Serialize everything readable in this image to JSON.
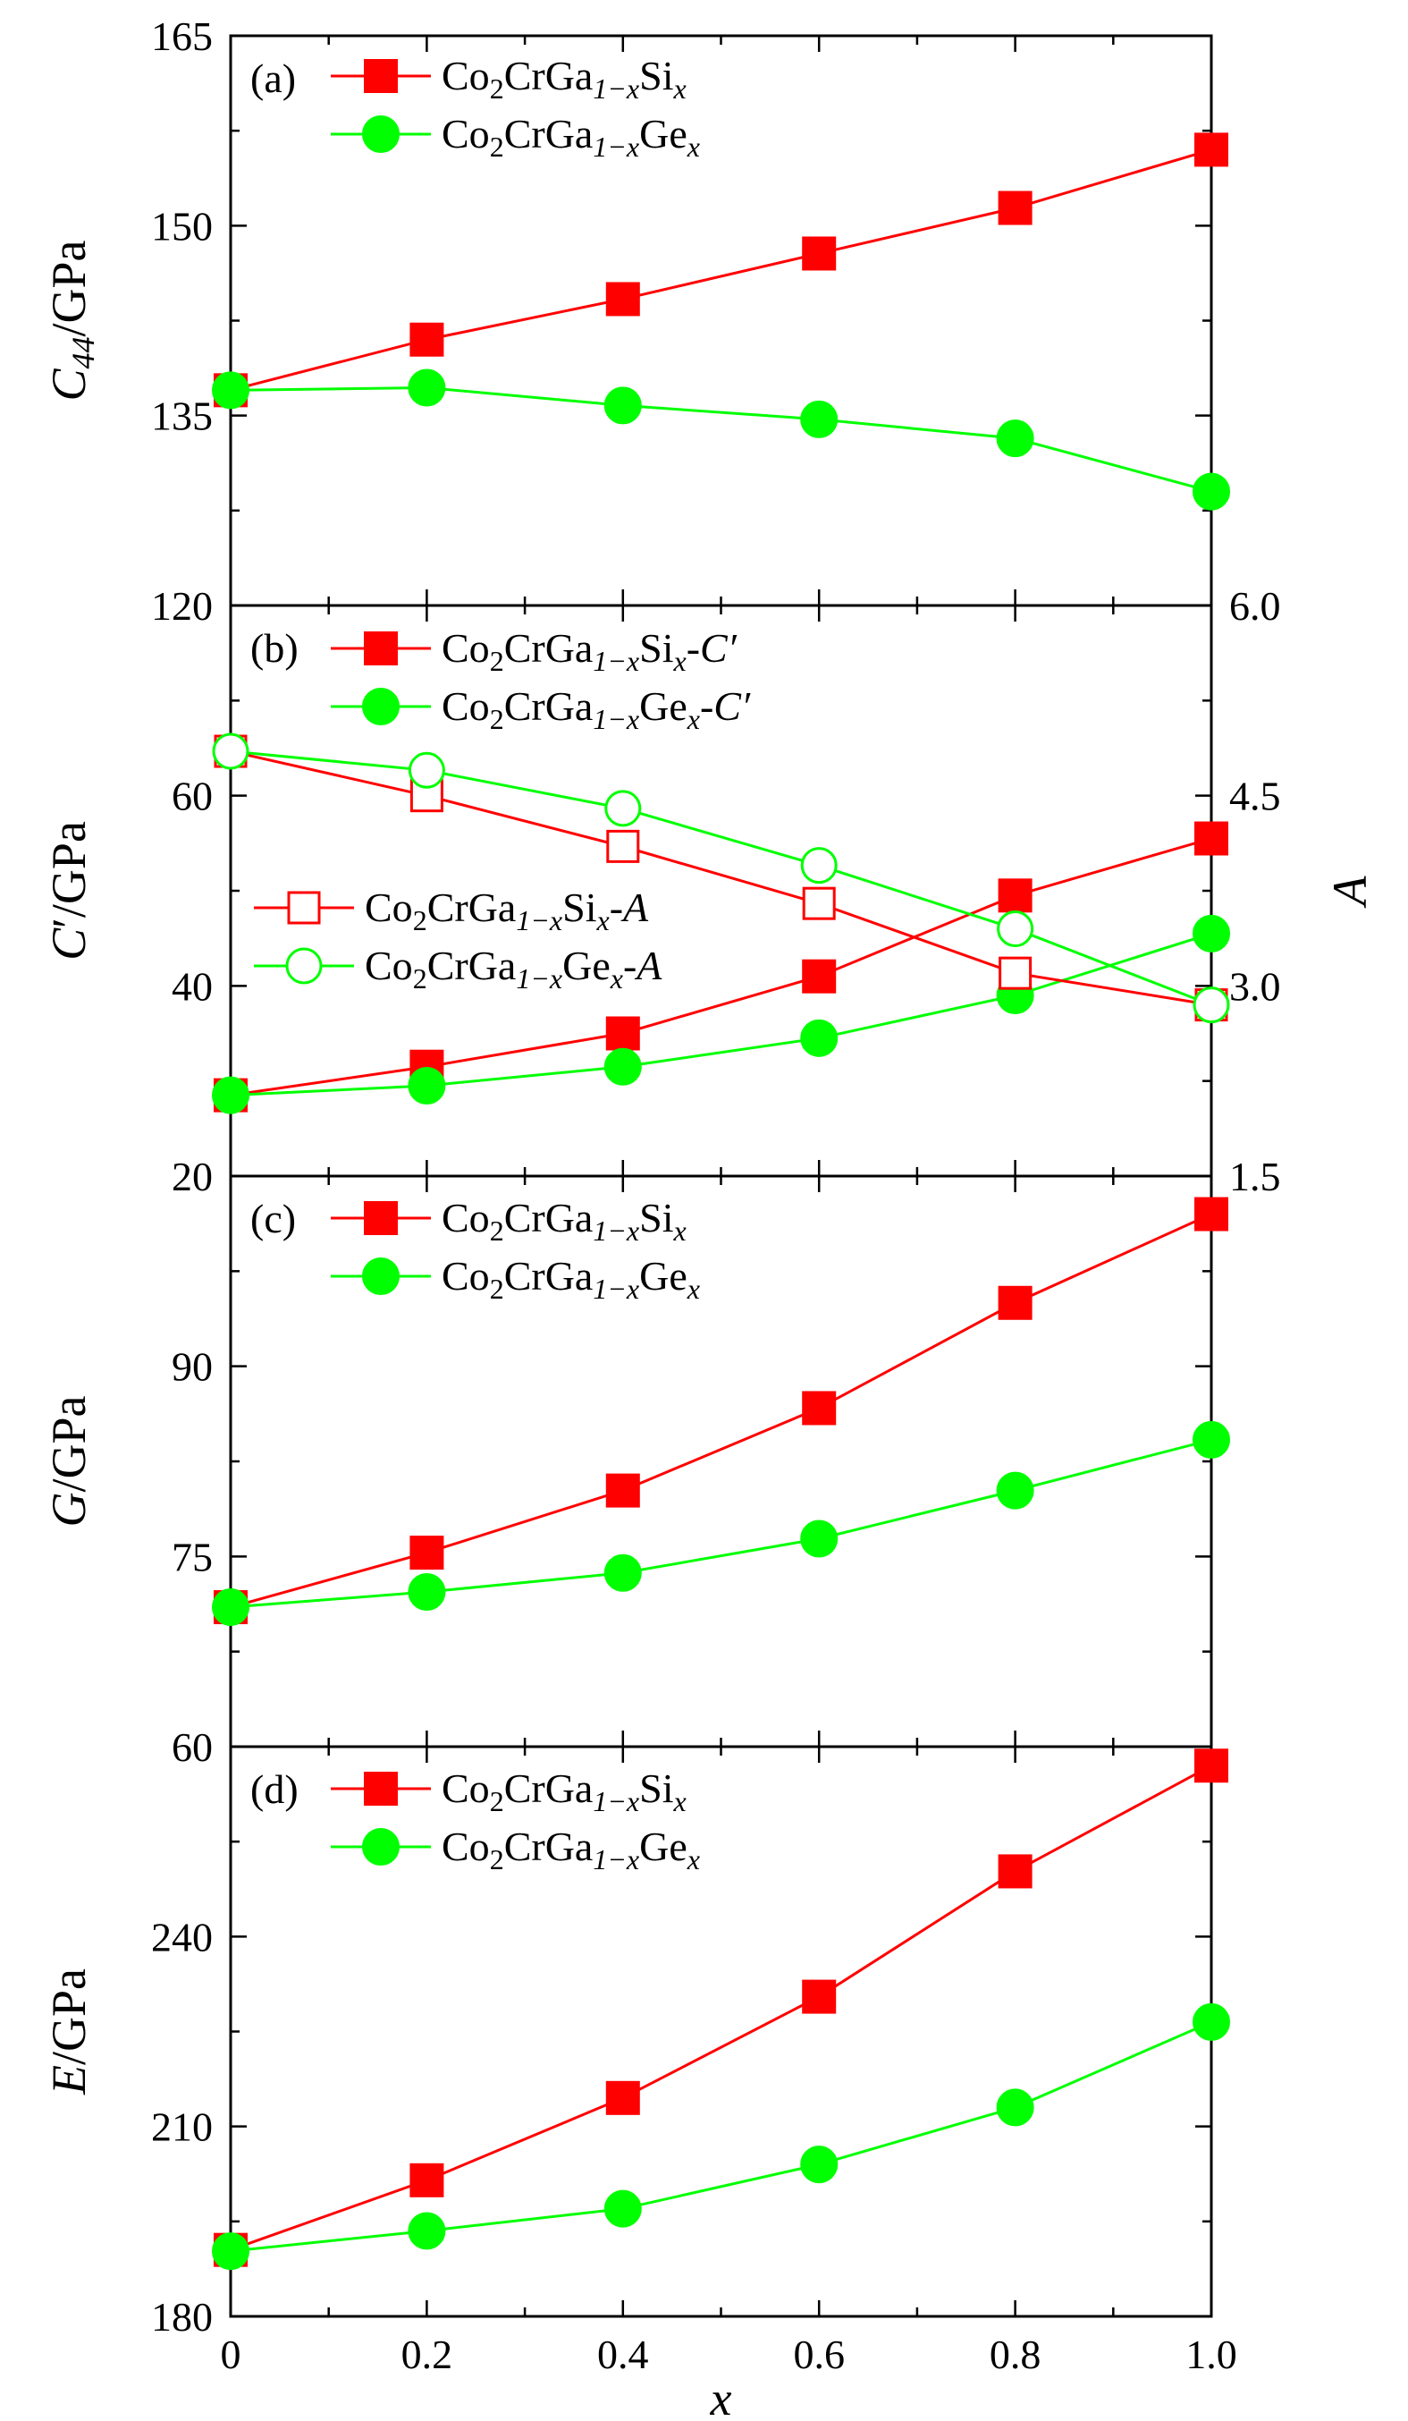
{
  "chart_data": [
    {
      "panel": "a",
      "type": "line",
      "panel_label": "(a)",
      "x": [
        0,
        0.2,
        0.4,
        0.6,
        0.8,
        1.0
      ],
      "xlim": [
        0,
        1.0
      ],
      "ylim": [
        120,
        165
      ],
      "yticks": [
        120,
        135,
        150,
        165
      ],
      "ylabel": {
        "symbol": "C",
        "sub": "44",
        "unit": "/GPa"
      },
      "series": [
        {
          "key": "si",
          "name": "Co2CrGa1−xSix",
          "marker": "square-filled",
          "color": "#ff0000",
          "legend": {
            "main": "Co",
            "s1": "2",
            "mid": "CrGa",
            "s2": "1−x",
            "elem": "Si",
            "s3": "x",
            "suffix": "",
            "suffix_ital": ""
          },
          "values": [
            137,
            141,
            144.2,
            147.8,
            151.4,
            156
          ]
        },
        {
          "key": "ge",
          "name": "Co2CrGa1−xGex",
          "marker": "circle-filled",
          "color": "#00ff00",
          "legend": {
            "main": "Co",
            "s1": "2",
            "mid": "CrGa",
            "s2": "1−x",
            "elem": "Ge",
            "s3": "x",
            "suffix": "",
            "suffix_ital": ""
          },
          "values": [
            137,
            137.2,
            135.8,
            134.7,
            133.2,
            129
          ]
        }
      ]
    },
    {
      "panel": "b",
      "type": "line",
      "panel_label": "(b)",
      "x": [
        0,
        0.2,
        0.4,
        0.6,
        0.8,
        1.0
      ],
      "xlim": [
        0,
        1.0
      ],
      "ylim": [
        20,
        80
      ],
      "yticks": [
        20,
        40,
        60
      ],
      "ylabel": {
        "symbol": "C",
        "sub": "",
        "prime": "′",
        "unit": "/GPa"
      },
      "y2lim": [
        1.5,
        6.0
      ],
      "y2ticks": [
        1.5,
        3.0,
        4.5,
        6.0
      ],
      "y2label": "A",
      "series": [
        {
          "key": "si_c",
          "name": "Co2CrGa1−xSix-C′",
          "axis": "left",
          "marker": "square-filled",
          "color": "#ff0000",
          "legend": {
            "main": "Co",
            "s1": "2",
            "mid": "CrGa",
            "s2": "1−x",
            "elem": "Si",
            "s3": "x",
            "suffix": "-",
            "suffix_ital": "C′"
          },
          "values": [
            28.5,
            31.5,
            35,
            41,
            49.5,
            55.5
          ]
        },
        {
          "key": "ge_c",
          "name": "Co2CrGa1−xGex-C′",
          "axis": "left",
          "marker": "circle-filled",
          "color": "#00ff00",
          "legend": {
            "main": "Co",
            "s1": "2",
            "mid": "CrGa",
            "s2": "1−x",
            "elem": "Ge",
            "s3": "x",
            "suffix": "-",
            "suffix_ital": "C′"
          },
          "values": [
            28.5,
            29.5,
            31.5,
            34.5,
            39,
            45.5
          ]
        },
        {
          "key": "si_a",
          "name": "Co2CrGa1−xSix-A",
          "axis": "right",
          "marker": "square-open",
          "color": "#ff0000",
          "legend": {
            "main": "Co",
            "s1": "2",
            "mid": "CrGa",
            "s2": "1−x",
            "elem": "Si",
            "s3": "x",
            "suffix": "-",
            "suffix_ital": "A"
          },
          "values": [
            4.85,
            4.5,
            4.1,
            3.65,
            3.1,
            2.85
          ]
        },
        {
          "key": "ge_a",
          "name": "Co2CrGa1−xGex-A",
          "axis": "right",
          "marker": "circle-open",
          "color": "#00ff00",
          "legend": {
            "main": "Co",
            "s1": "2",
            "mid": "CrGa",
            "s2": "1−x",
            "elem": "Ge",
            "s3": "x",
            "suffix": "-",
            "suffix_ital": "A"
          },
          "values": [
            4.85,
            4.7,
            4.4,
            3.95,
            3.45,
            2.85
          ]
        }
      ]
    },
    {
      "panel": "c",
      "type": "line",
      "panel_label": "(c)",
      "x": [
        0,
        0.2,
        0.4,
        0.6,
        0.8,
        1.0
      ],
      "xlim": [
        0,
        1.0
      ],
      "ylim": [
        60,
        105
      ],
      "yticks": [
        60,
        75,
        90
      ],
      "ylabel": {
        "symbol": "G",
        "sub": "",
        "unit": "/GPa"
      },
      "series": [
        {
          "key": "si",
          "name": "Co2CrGa1−xSix",
          "marker": "square-filled",
          "color": "#ff0000",
          "legend": {
            "main": "Co",
            "s1": "2",
            "mid": "CrGa",
            "s2": "1−x",
            "elem": "Si",
            "s3": "x",
            "suffix": "",
            "suffix_ital": ""
          },
          "values": [
            71,
            75.3,
            80.2,
            86.7,
            95,
            102
          ]
        },
        {
          "key": "ge",
          "name": "Co2CrGa1−xGex",
          "marker": "circle-filled",
          "color": "#00ff00",
          "legend": {
            "main": "Co",
            "s1": "2",
            "mid": "CrGa",
            "s2": "1−x",
            "elem": "Ge",
            "s3": "x",
            "suffix": "",
            "suffix_ital": ""
          },
          "values": [
            71,
            72.2,
            73.7,
            76.4,
            80.2,
            84.2
          ]
        }
      ]
    },
    {
      "panel": "d",
      "type": "line",
      "panel_label": "(d)",
      "x": [
        0,
        0.2,
        0.4,
        0.6,
        0.8,
        1.0
      ],
      "xlim": [
        0,
        1.0
      ],
      "xticks": [
        "0",
        "0.2",
        "0.4",
        "0.6",
        "0.8",
        "1.0"
      ],
      "xlabel": "x",
      "ylim": [
        180,
        270
      ],
      "yticks": [
        180,
        210,
        240
      ],
      "ylabel": {
        "symbol": "E",
        "sub": "",
        "unit": "/GPa"
      },
      "series": [
        {
          "key": "si",
          "name": "Co2CrGa1−xSix",
          "marker": "square-filled",
          "color": "#ff0000",
          "legend": {
            "main": "Co",
            "s1": "2",
            "mid": "CrGa",
            "s2": "1−x",
            "elem": "Si",
            "s3": "x",
            "suffix": "",
            "suffix_ital": ""
          },
          "values": [
            190.5,
            201.5,
            214.5,
            230.5,
            250.3,
            267
          ]
        },
        {
          "key": "ge",
          "name": "Co2CrGa1−xGex",
          "marker": "circle-filled",
          "color": "#00ff00",
          "legend": {
            "main": "Co",
            "s1": "2",
            "mid": "CrGa",
            "s2": "1−x",
            "elem": "Ge",
            "s3": "x",
            "suffix": "",
            "suffix_ital": ""
          },
          "values": [
            190.3,
            193.5,
            197,
            204,
            213,
            226.5
          ]
        }
      ]
    }
  ]
}
